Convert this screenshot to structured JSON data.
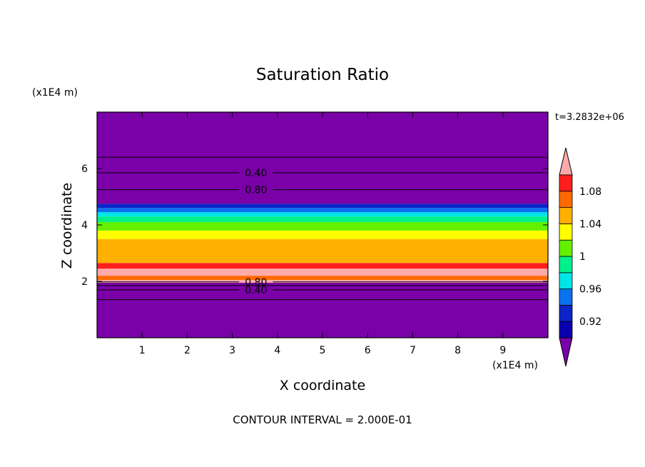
{
  "chart_data": {
    "type": "heatmap",
    "title": "Saturation Ratio",
    "xlabel": "X coordinate",
    "ylabel": "Z coordinate",
    "x_unit": "(x1E4 m)",
    "y_unit": "(x1E4 m)",
    "timestamp": "t=3.2832e+06",
    "footer": "CONTOUR INTERVAL = 2.000E-01",
    "xlim": [
      0,
      10
    ],
    "ylim": [
      0,
      8
    ],
    "x_ticks": [
      1,
      2,
      3,
      4,
      5,
      6,
      7,
      8,
      9
    ],
    "y_ticks": [
      2,
      4,
      6
    ],
    "colorbar": {
      "levels": [
        0.9,
        0.92,
        0.94,
        0.96,
        0.98,
        1.0,
        1.02,
        1.04,
        1.06,
        1.08,
        1.1
      ],
      "labels": [
        "0.92",
        "0.96",
        "1",
        "1.04",
        "1.08"
      ],
      "colors": [
        "#7a00a8",
        "#0a00b0",
        "#0a24c8",
        "#0a72f0",
        "#00e6e6",
        "#00f08c",
        "#64f000",
        "#ffff00",
        "#ffb000",
        "#ff6a00",
        "#ff1e1e",
        "#ffaaaa"
      ],
      "extend": "both"
    },
    "bands": [
      {
        "z0": 0.0,
        "z1": 1.95,
        "value": 0.5
      },
      {
        "z0": 1.95,
        "z1": 2.05,
        "value": 1.12
      },
      {
        "z0": 2.05,
        "z1": 2.2,
        "value": 1.07
      },
      {
        "z0": 2.2,
        "z1": 2.45,
        "value": 1.11
      },
      {
        "z0": 2.45,
        "z1": 2.65,
        "value": 1.09
      },
      {
        "z0": 2.65,
        "z1": 3.05,
        "value": 1.05
      },
      {
        "z0": 3.05,
        "z1": 3.5,
        "value": 1.04
      },
      {
        "z0": 3.5,
        "z1": 3.8,
        "value": 1.03
      },
      {
        "z0": 3.8,
        "z1": 4.1,
        "value": 1.01
      },
      {
        "z0": 4.1,
        "z1": 4.3,
        "value": 0.99
      },
      {
        "z0": 4.3,
        "z1": 4.45,
        "value": 0.97
      },
      {
        "z0": 4.45,
        "z1": 4.6,
        "value": 0.95
      },
      {
        "z0": 4.6,
        "z1": 4.75,
        "value": 0.93
      },
      {
        "z0": 4.75,
        "z1": 8.0,
        "value": 0.5
      }
    ],
    "contours": [
      {
        "z": 6.4,
        "label": ""
      },
      {
        "z": 5.85,
        "label": "0.40"
      },
      {
        "z": 5.25,
        "label": "0.80"
      },
      {
        "z": 1.98,
        "label": "0.80"
      },
      {
        "z": 1.85,
        "label": ""
      },
      {
        "z": 1.7,
        "label": "0.40"
      },
      {
        "z": 1.35,
        "label": ""
      }
    ]
  }
}
